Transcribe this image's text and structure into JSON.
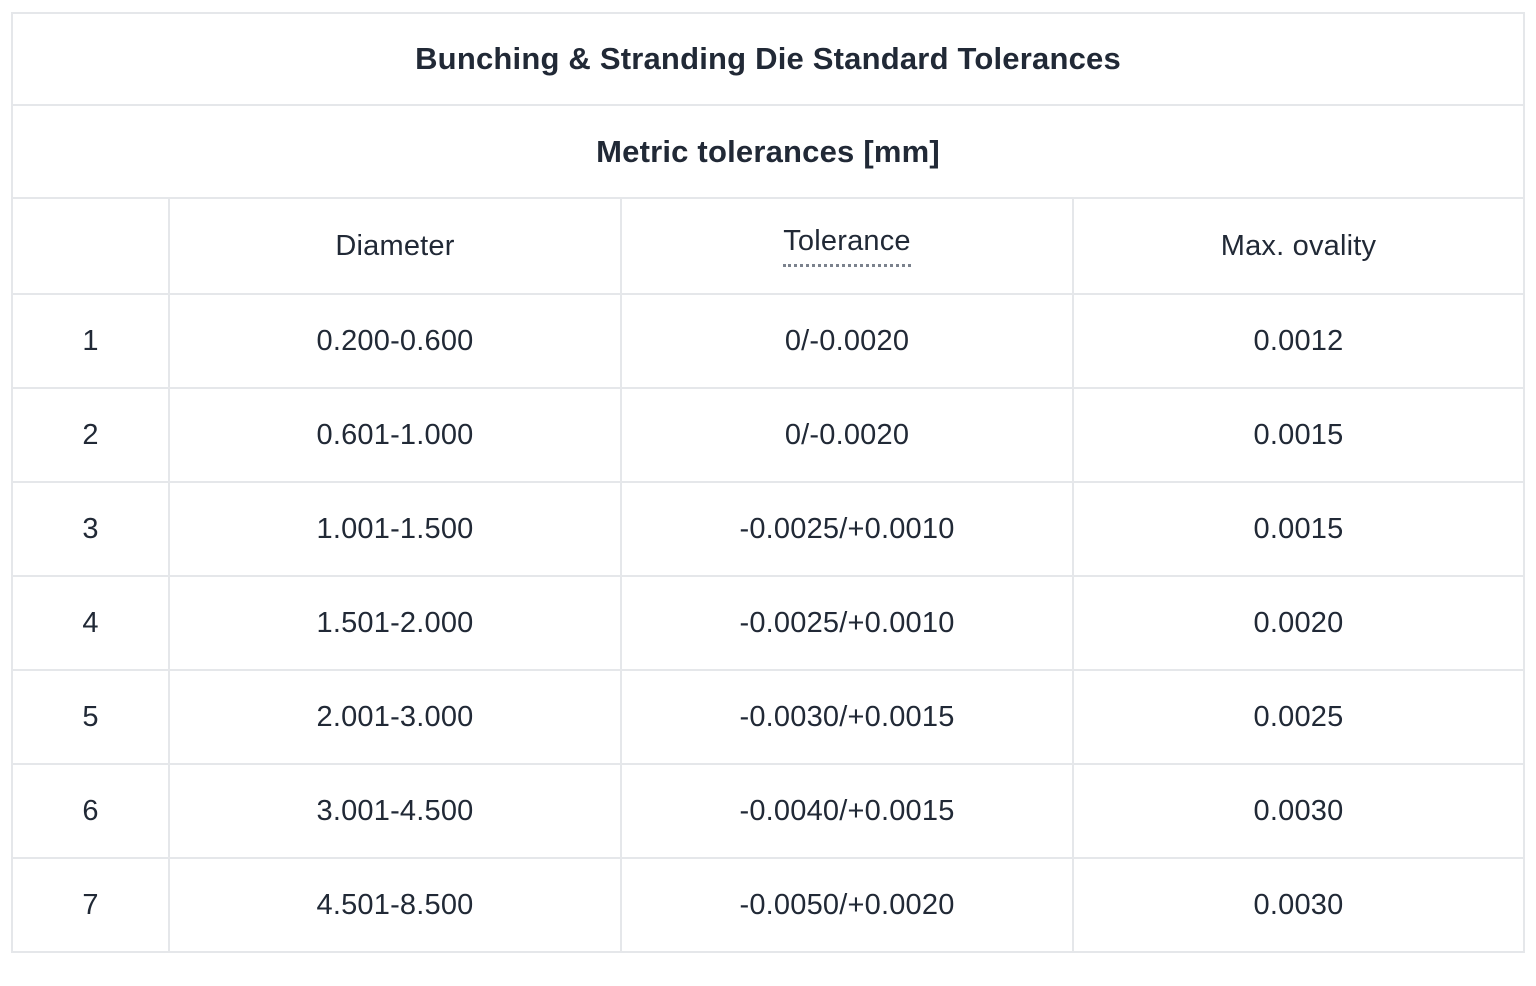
{
  "table": {
    "title": "Bunching & Stranding Die Standard Tolerances",
    "subtitle": "Metric tolerances [mm]",
    "columns": {
      "index": "",
      "diameter": "Diameter",
      "tolerance": "Tolerance",
      "max_ovality": "Max. ovality"
    },
    "rows": [
      {
        "num": "1",
        "diameter": "0.200-0.600",
        "tolerance": "0/-0.0020",
        "max_ovality": "0.0012"
      },
      {
        "num": "2",
        "diameter": "0.601-1.000",
        "tolerance": "0/-0.0020",
        "max_ovality": "0.0015"
      },
      {
        "num": "3",
        "diameter": "1.001-1.500",
        "tolerance": "-0.0025/+0.0010",
        "max_ovality": "0.0015"
      },
      {
        "num": "4",
        "diameter": "1.501-2.000",
        "tolerance": "-0.0025/+0.0010",
        "max_ovality": "0.0020"
      },
      {
        "num": "5",
        "diameter": "2.001-3.000",
        "tolerance": "-0.0030/+0.0015",
        "max_ovality": "0.0025"
      },
      {
        "num": "6",
        "diameter": "3.001-4.500",
        "tolerance": "-0.0040/+0.0015",
        "max_ovality": "0.0030"
      },
      {
        "num": "7",
        "diameter": "4.501-8.500",
        "tolerance": "-0.0050/+0.0020",
        "max_ovality": "0.0030"
      }
    ]
  },
  "colors": {
    "text": "#212936",
    "border": "#e5e7ea",
    "background": "#ffffff"
  }
}
